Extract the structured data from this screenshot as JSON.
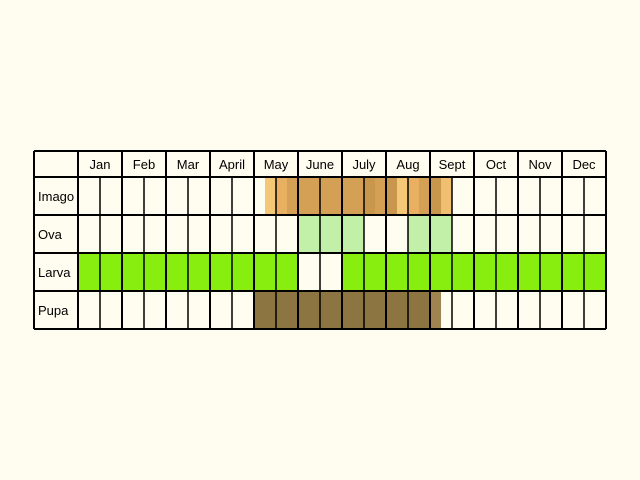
{
  "chart_data": {
    "type": "table",
    "months": [
      "Jan",
      "Feb",
      "Mar",
      "April",
      "May",
      "June",
      "July",
      "Aug",
      "Sept",
      "Oct",
      "Nov",
      "Dec"
    ],
    "subdivisions_per_month": 2,
    "stages": [
      {
        "label": "Imago",
        "segments": [
          {
            "start": 8.5,
            "end": 9.0,
            "color": "#f5c878"
          },
          {
            "start": 9.0,
            "end": 9.5,
            "color": "#e8b060"
          },
          {
            "start": 9.5,
            "end": 10.0,
            "color": "#d4a055"
          },
          {
            "start": 10.0,
            "end": 11.0,
            "color": "#d4a055"
          },
          {
            "start": 11.0,
            "end": 12.0,
            "color": "#d4a055"
          },
          {
            "start": 12.0,
            "end": 13.0,
            "color": "#d4a055"
          },
          {
            "start": 13.0,
            "end": 13.5,
            "color": "#c8964c"
          },
          {
            "start": 13.5,
            "end": 14.0,
            "color": "#d4a055"
          },
          {
            "start": 14.0,
            "end": 14.5,
            "color": "#c8964c"
          },
          {
            "start": 14.5,
            "end": 15.0,
            "color": "#f5c878"
          },
          {
            "start": 15.0,
            "end": 15.5,
            "color": "#e8b060"
          },
          {
            "start": 15.5,
            "end": 16.0,
            "color": "#d4a055"
          },
          {
            "start": 16.0,
            "end": 16.5,
            "color": "#c8964c"
          },
          {
            "start": 16.5,
            "end": 17.0,
            "color": "#f0c070"
          }
        ]
      },
      {
        "label": "Ova",
        "segments": [
          {
            "start": 10.0,
            "end": 13.0,
            "color": "#c2f0a8"
          },
          {
            "start": 15.0,
            "end": 17.0,
            "color": "#c2f0a8"
          }
        ]
      },
      {
        "label": "Larva",
        "segments": [
          {
            "start": 0.0,
            "end": 10.0,
            "color": "#88ee10"
          },
          {
            "start": 12.0,
            "end": 24.0,
            "color": "#88ee10"
          }
        ]
      },
      {
        "label": "Pupa",
        "segments": [
          {
            "start": 8.0,
            "end": 12.0,
            "color": "#8c7540"
          },
          {
            "start": 12.0,
            "end": 14.0,
            "color": "#8c7540"
          },
          {
            "start": 14.0,
            "end": 16.0,
            "color": "#8c7540"
          },
          {
            "start": 16.0,
            "end": 16.5,
            "color": "#a08450"
          }
        ]
      }
    ],
    "colors": {
      "background": "#fefdf0",
      "grid": "#000000"
    }
  }
}
